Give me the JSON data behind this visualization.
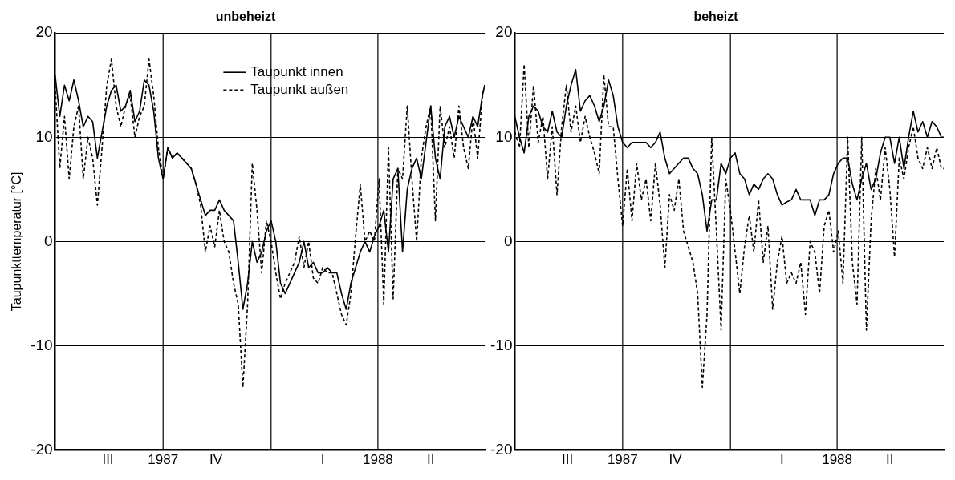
{
  "chart_data": [
    {
      "type": "line",
      "title": "unbeheizt",
      "ylabel": "Taupunkttemperatur [°C]",
      "x": [
        "1987-07-01",
        "1987-07-05",
        "1987-07-09",
        "1987-07-13",
        "1987-07-17",
        "1987-07-21",
        "1987-07-25",
        "1987-07-29",
        "1987-08-02",
        "1987-08-06",
        "1987-08-10",
        "1987-08-14",
        "1987-08-18",
        "1987-08-22",
        "1987-08-26",
        "1987-08-30",
        "1987-09-03",
        "1987-09-07",
        "1987-09-11",
        "1987-09-15",
        "1987-09-19",
        "1987-09-23",
        "1987-09-27",
        "1987-10-01",
        "1987-10-05",
        "1987-10-09",
        "1987-10-13",
        "1987-10-17",
        "1987-10-21",
        "1987-10-25",
        "1987-10-29",
        "1987-11-02",
        "1987-11-06",
        "1987-11-10",
        "1987-11-14",
        "1987-11-18",
        "1987-11-22",
        "1987-11-26",
        "1987-11-30",
        "1987-12-04",
        "1987-12-08",
        "1987-12-12",
        "1987-12-16",
        "1987-12-20",
        "1987-12-24",
        "1987-12-28",
        "1988-01-01",
        "1988-01-05",
        "1988-01-09",
        "1988-01-13",
        "1988-01-17",
        "1988-01-21",
        "1988-01-25",
        "1988-01-29",
        "1988-02-02",
        "1988-02-06",
        "1988-02-10",
        "1988-02-14",
        "1988-02-18",
        "1988-02-22",
        "1988-02-26",
        "1988-03-01",
        "1988-03-05",
        "1988-03-09",
        "1988-03-13",
        "1988-03-17",
        "1988-03-21",
        "1988-03-25",
        "1988-03-29",
        "1988-04-02",
        "1988-04-06",
        "1988-04-10",
        "1988-04-14",
        "1988-04-18",
        "1988-04-22",
        "1988-04-26",
        "1988-04-30",
        "1988-05-04",
        "1988-05-08",
        "1988-05-12",
        "1988-05-16",
        "1988-05-20",
        "1988-05-24",
        "1988-05-28",
        "1988-06-01",
        "1988-06-05",
        "1988-06-09",
        "1988-06-13",
        "1988-06-17",
        "1988-06-21",
        "1988-06-25",
        "1988-06-29",
        "1988-07-01"
      ],
      "series": [
        {
          "name": "Taupunkt innen",
          "color": "#000000",
          "line_style": "solid",
          "values": [
            16,
            12,
            15,
            13.5,
            15.5,
            13.5,
            11,
            12,
            11.5,
            8,
            10.5,
            13,
            14.5,
            15,
            12.5,
            13,
            14.5,
            11.5,
            12.5,
            15.5,
            15,
            12.5,
            8,
            6,
            9,
            8,
            8.5,
            8,
            7.5,
            7,
            5.5,
            4,
            2.5,
            3,
            3,
            4,
            3,
            2.5,
            2,
            -2,
            -6.5,
            -4,
            0,
            -2,
            -1,
            1,
            2,
            0,
            -4,
            -5,
            -4,
            -3,
            -2,
            0,
            -2.5,
            -2,
            -3,
            -3,
            -2.5,
            -3,
            -3,
            -5,
            -6.5,
            -4,
            -2.5,
            -1,
            0,
            -1,
            0.5,
            1.5,
            3,
            -1,
            6,
            7,
            -1,
            5,
            7,
            8,
            6,
            9.5,
            13,
            8,
            6,
            11,
            12,
            10,
            12,
            11,
            10,
            12,
            11,
            14,
            15
          ]
        },
        {
          "name": "Taupunkt außen",
          "color": "#000000",
          "line_style": "dashed",
          "values": [
            15,
            7,
            12,
            6,
            11,
            13,
            6,
            10,
            8,
            3.5,
            9,
            15,
            17.5,
            13,
            11,
            13,
            14,
            10,
            12,
            13,
            17.5,
            14,
            9,
            6,
            9,
            8,
            8.5,
            8,
            7.5,
            7,
            5.5,
            3.5,
            -1,
            1.5,
            -0.5,
            3,
            0,
            -1,
            -4,
            -6,
            -14,
            -6,
            7.5,
            3,
            -3,
            2,
            0,
            -3,
            -5.5,
            -4,
            -3,
            -2,
            0.5,
            -2.5,
            0,
            -3.5,
            -4,
            -2.5,
            -3,
            -3,
            -5,
            -7,
            -8,
            -5,
            0.5,
            5.5,
            0,
            1,
            0,
            6,
            -6,
            9,
            -5.5,
            7,
            6,
            13,
            6,
            0,
            8,
            11,
            13,
            2,
            13,
            9,
            11,
            8,
            13,
            9,
            7,
            12,
            8,
            14,
            15
          ]
        }
      ],
      "xlim": [
        "1987-07-01",
        "1988-07-01"
      ],
      "xticks": [
        {
          "value": "1987-08-15",
          "label": "III"
        },
        {
          "value": "1987-10-01",
          "label": "1987"
        },
        {
          "value": "1987-11-15",
          "label": "IV"
        },
        {
          "value": "1988-02-14",
          "label": "I"
        },
        {
          "value": "1988-04-01",
          "label": "1988"
        },
        {
          "value": "1988-05-16",
          "label": "II"
        }
      ],
      "ylim": [
        -20,
        20
      ],
      "yticks": [
        -20,
        -10,
        0,
        10,
        20
      ],
      "grid": "y",
      "legend": "top",
      "marker": "none",
      "ref_lines": [
        {
          "axis": "x",
          "value": "1987-10-01",
          "color": "#000000"
        },
        {
          "axis": "x",
          "value": "1988-01-01",
          "color": "#000000"
        },
        {
          "axis": "x",
          "value": "1988-04-01",
          "color": "#000000"
        }
      ]
    },
    {
      "type": "line",
      "title": "beheizt",
      "x": [
        "1987-07-01",
        "1987-07-05",
        "1987-07-09",
        "1987-07-13",
        "1987-07-17",
        "1987-07-21",
        "1987-07-25",
        "1987-07-29",
        "1987-08-02",
        "1987-08-06",
        "1987-08-10",
        "1987-08-14",
        "1987-08-18",
        "1987-08-22",
        "1987-08-26",
        "1987-08-30",
        "1987-09-03",
        "1987-09-07",
        "1987-09-11",
        "1987-09-15",
        "1987-09-19",
        "1987-09-23",
        "1987-09-27",
        "1987-10-01",
        "1987-10-05",
        "1987-10-09",
        "1987-10-13",
        "1987-10-17",
        "1987-10-21",
        "1987-10-25",
        "1987-10-29",
        "1987-11-02",
        "1987-11-06",
        "1987-11-10",
        "1987-11-14",
        "1987-11-18",
        "1987-11-22",
        "1987-11-26",
        "1987-11-30",
        "1987-12-04",
        "1987-12-08",
        "1987-12-12",
        "1987-12-16",
        "1987-12-20",
        "1987-12-24",
        "1987-12-28",
        "1988-01-01",
        "1988-01-05",
        "1988-01-09",
        "1988-01-13",
        "1988-01-17",
        "1988-01-21",
        "1988-01-25",
        "1988-01-29",
        "1988-02-02",
        "1988-02-06",
        "1988-02-10",
        "1988-02-14",
        "1988-02-18",
        "1988-02-22",
        "1988-02-26",
        "1988-03-01",
        "1988-03-05",
        "1988-03-09",
        "1988-03-13",
        "1988-03-17",
        "1988-03-21",
        "1988-03-25",
        "1988-03-29",
        "1988-04-02",
        "1988-04-06",
        "1988-04-10",
        "1988-04-14",
        "1988-04-18",
        "1988-04-22",
        "1988-04-26",
        "1988-04-30",
        "1988-05-04",
        "1988-05-08",
        "1988-05-12",
        "1988-05-16",
        "1988-05-20",
        "1988-05-24",
        "1988-05-28",
        "1988-06-01",
        "1988-06-05",
        "1988-06-09",
        "1988-06-13",
        "1988-06-17",
        "1988-06-21",
        "1988-06-25",
        "1988-06-29",
        "1988-07-01"
      ],
      "series": [
        {
          "color": "#000000",
          "line_style": "solid",
          "values": [
            12,
            10,
            8.5,
            12,
            13,
            12.5,
            11,
            10.5,
            12.5,
            10.5,
            10,
            13,
            15,
            16.5,
            12.5,
            13.5,
            14,
            13,
            11.5,
            13,
            15.5,
            14,
            11,
            9.5,
            9,
            9.5,
            9.5,
            9.5,
            9.5,
            9,
            9.5,
            10.5,
            8,
            6.5,
            7,
            7.5,
            8,
            8,
            7,
            6.5,
            4.5,
            1,
            4,
            4,
            7.5,
            6.5,
            8,
            8.5,
            6.5,
            6,
            4.5,
            5.5,
            5,
            6,
            6.5,
            6,
            4.5,
            3.5,
            3.8,
            4,
            5,
            4,
            4,
            4,
            2.5,
            4,
            4,
            4.5,
            6.5,
            7.5,
            8,
            8,
            5.5,
            4,
            6,
            7.5,
            5,
            6,
            8.5,
            10,
            10,
            7.5,
            10,
            7,
            10,
            12.5,
            10.5,
            11.5,
            10,
            11.5,
            11,
            10,
            10
          ]
        },
        {
          "color": "#000000",
          "line_style": "dashed",
          "values": [
            10.5,
            9,
            17,
            9,
            15,
            9.5,
            12,
            6,
            11,
            4.5,
            11,
            15,
            10.5,
            13,
            9.5,
            12,
            10,
            8.5,
            6.5,
            16,
            11,
            11,
            6,
            1.5,
            7,
            2,
            7.5,
            4,
            6,
            2,
            7.5,
            3.5,
            -2.5,
            4.5,
            3,
            6,
            1,
            -0.5,
            -2,
            -5,
            -14,
            -7,
            10,
            1,
            -8.5,
            6,
            3,
            -1,
            -5,
            -0.5,
            2.5,
            -1,
            4,
            -2,
            1.5,
            -6.5,
            -2,
            0.5,
            -4,
            -3,
            -4,
            -2,
            -7,
            0,
            -1,
            -5,
            1.5,
            3,
            -1,
            1,
            -4,
            10,
            -2,
            -6,
            10,
            -8.5,
            2,
            7,
            4,
            9,
            5,
            -1.5,
            8,
            6,
            9,
            11,
            8,
            7,
            9,
            7,
            9,
            7,
            7
          ]
        }
      ],
      "xlim": [
        "1987-07-01",
        "1988-07-01"
      ],
      "xticks": [
        {
          "value": "1987-08-15",
          "label": "III"
        },
        {
          "value": "1987-10-01",
          "label": "1987"
        },
        {
          "value": "1987-11-15",
          "label": "IV"
        },
        {
          "value": "1988-02-14",
          "label": "I"
        },
        {
          "value": "1988-04-01",
          "label": "1988"
        },
        {
          "value": "1988-05-16",
          "label": "II"
        }
      ],
      "ylim": [
        -20,
        20
      ],
      "yticks": [
        -20,
        -10,
        0,
        10,
        20
      ],
      "grid": "y",
      "marker": "none",
      "ref_lines": [
        {
          "axis": "x",
          "value": "1987-10-01",
          "color": "#000000"
        },
        {
          "axis": "x",
          "value": "1988-01-01",
          "color": "#000000"
        },
        {
          "axis": "x",
          "value": "1988-04-01",
          "color": "#000000"
        }
      ]
    }
  ]
}
